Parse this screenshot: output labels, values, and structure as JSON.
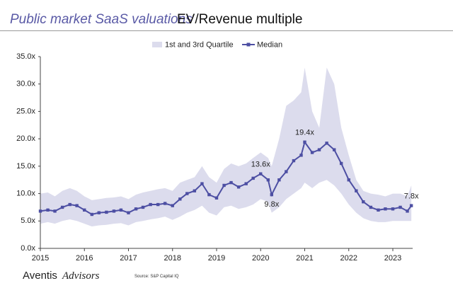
{
  "chart_data": {
    "type": "line",
    "title": "Public market SaaS valuations",
    "subtitle": "EV/Revenue multiple",
    "source": "Source: S&P Capital IQ",
    "brand": [
      "Aventis",
      "Advisors"
    ],
    "x": [
      2015.0,
      2015.17,
      2015.33,
      2015.5,
      2015.67,
      2015.83,
      2016.0,
      2016.17,
      2016.33,
      2016.5,
      2016.67,
      2016.83,
      2017.0,
      2017.17,
      2017.33,
      2017.5,
      2017.67,
      2017.83,
      2018.0,
      2018.17,
      2018.33,
      2018.5,
      2018.67,
      2018.83,
      2019.0,
      2019.17,
      2019.33,
      2019.5,
      2019.67,
      2019.83,
      2020.0,
      2020.17,
      2020.25,
      2020.42,
      2020.58,
      2020.75,
      2020.92,
      2021.0,
      2021.17,
      2021.33,
      2021.5,
      2021.67,
      2021.83,
      2022.0,
      2022.17,
      2022.33,
      2022.5,
      2022.67,
      2022.83,
      2023.0,
      2023.17,
      2023.33,
      2023.42
    ],
    "series": [
      {
        "name": "1st and 3rd Quartile",
        "color": "#dcdced",
        "upper": [
          10.0,
          10.2,
          9.5,
          10.5,
          11.0,
          10.5,
          9.5,
          8.8,
          9.0,
          9.2,
          9.3,
          9.5,
          9.0,
          9.8,
          10.2,
          10.5,
          10.8,
          11.0,
          10.5,
          12.0,
          12.5,
          13.0,
          15.0,
          13.0,
          12.0,
          14.5,
          15.5,
          15.0,
          15.5,
          16.5,
          17.5,
          16.5,
          15.0,
          20.0,
          26.0,
          27.0,
          28.5,
          33.0,
          25.0,
          22.0,
          33.0,
          30.0,
          22.0,
          17.0,
          12.5,
          10.5,
          10.0,
          9.8,
          9.5,
          10.0,
          10.0,
          9.5,
          11.5
        ],
        "lower": [
          4.5,
          4.8,
          4.5,
          5.0,
          5.3,
          5.0,
          4.5,
          4.0,
          4.2,
          4.3,
          4.5,
          4.6,
          4.2,
          4.8,
          5.0,
          5.3,
          5.5,
          5.8,
          5.2,
          5.8,
          6.5,
          7.0,
          7.8,
          6.5,
          6.0,
          7.5,
          7.8,
          7.2,
          7.5,
          8.0,
          9.0,
          8.5,
          6.5,
          7.5,
          9.0,
          10.0,
          11.0,
          12.0,
          11.0,
          12.0,
          12.5,
          11.5,
          10.0,
          8.0,
          6.5,
          5.5,
          5.0,
          4.8,
          4.8,
          5.0,
          5.0,
          5.0,
          5.0
        ]
      },
      {
        "name": "Median",
        "color": "#4d4fa3",
        "values": [
          6.8,
          7.0,
          6.8,
          7.5,
          8.0,
          7.8,
          7.0,
          6.2,
          6.5,
          6.6,
          6.8,
          7.0,
          6.5,
          7.2,
          7.5,
          8.0,
          8.0,
          8.2,
          7.8,
          9.0,
          10.0,
          10.5,
          11.8,
          9.8,
          9.2,
          11.5,
          12.0,
          11.2,
          11.8,
          12.8,
          13.6,
          12.5,
          9.8,
          12.5,
          14.0,
          16.0,
          17.0,
          19.4,
          17.5,
          18.0,
          19.2,
          18.0,
          15.5,
          12.5,
          10.5,
          8.5,
          7.5,
          7.0,
          7.2,
          7.2,
          7.5,
          6.8,
          7.8
        ],
        "value_labels": [
          null,
          null,
          null,
          null,
          null,
          null,
          null,
          null,
          null,
          null,
          null,
          null,
          null,
          null,
          null,
          null,
          null,
          null,
          null,
          null,
          null,
          null,
          null,
          null,
          null,
          null,
          null,
          null,
          null,
          null,
          "13.6x",
          null,
          "9.8x",
          null,
          null,
          null,
          null,
          "19.4x",
          null,
          null,
          null,
          null,
          null,
          null,
          null,
          null,
          null,
          null,
          null,
          null,
          null,
          null,
          "7.8x"
        ]
      }
    ],
    "xlim": [
      2015,
      2023.45
    ],
    "xticks": [
      2015,
      2016,
      2017,
      2018,
      2019,
      2020,
      2021,
      2022,
      2023
    ],
    "ylim": [
      0,
      35
    ],
    "yticks": [
      {
        "value": 0,
        "label": "0.0x"
      },
      {
        "value": 5,
        "label": "5.0x"
      },
      {
        "value": 10,
        "label": "10.0x"
      },
      {
        "value": 15,
        "label": "15.0x"
      },
      {
        "value": 20,
        "label": "20.0x"
      },
      {
        "value": 25,
        "label": "25.0x"
      },
      {
        "value": 30,
        "label": "30.0x"
      },
      {
        "value": 35,
        "label": "35.0x"
      }
    ],
    "grid": false,
    "legend": "top"
  }
}
